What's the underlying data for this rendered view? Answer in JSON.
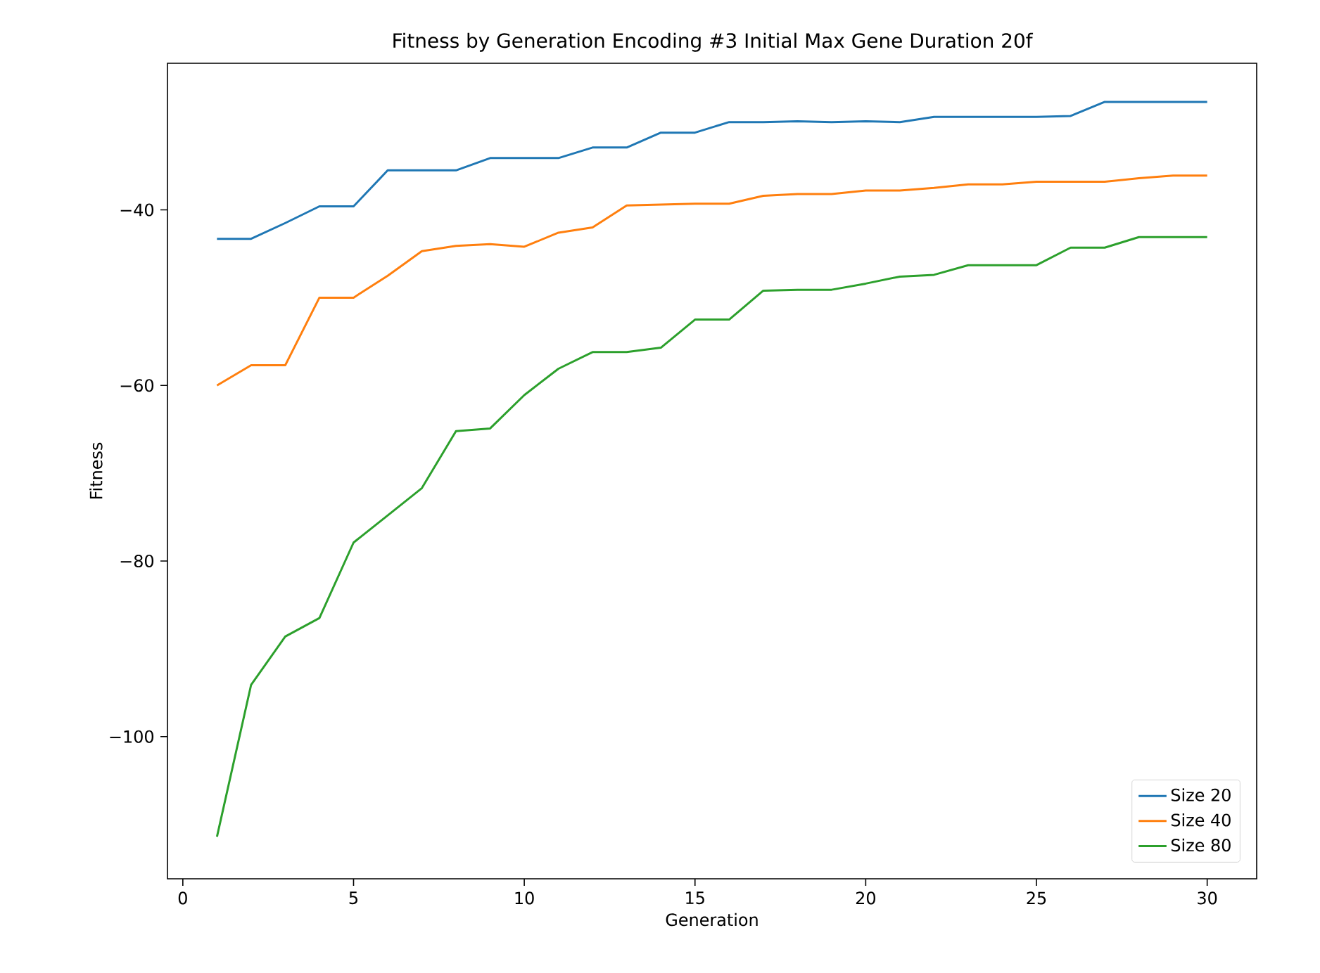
{
  "chart_data": {
    "type": "line",
    "title": "Fitness by Generation Encoding #3 Initial Max Gene Duration 20f",
    "xlabel": "Generation",
    "ylabel": "Fitness",
    "x": [
      1,
      2,
      3,
      4,
      5,
      6,
      7,
      8,
      9,
      10,
      11,
      12,
      13,
      14,
      15,
      16,
      17,
      18,
      19,
      20,
      21,
      22,
      23,
      24,
      25,
      26,
      27,
      28,
      29,
      30
    ],
    "series": [
      {
        "name": "Size 20",
        "color": "#1f77b4",
        "values": [
          -43.3,
          -43.3,
          -41.5,
          -39.6,
          -39.6,
          -35.5,
          -35.5,
          -35.5,
          -34.1,
          -34.1,
          -34.1,
          -32.9,
          -32.9,
          -31.2,
          -31.2,
          -30.0,
          -30.0,
          -29.9,
          -30.0,
          -29.9,
          -30.0,
          -29.4,
          -29.4,
          -29.4,
          -29.4,
          -29.3,
          -27.7,
          -27.7,
          -27.7,
          -27.7
        ]
      },
      {
        "name": "Size 40",
        "color": "#ff7f0e",
        "values": [
          -60.0,
          -57.7,
          -57.7,
          -50.0,
          -50.0,
          -47.5,
          -44.7,
          -44.1,
          -43.9,
          -44.2,
          -42.6,
          -42.0,
          -39.5,
          -39.4,
          -39.3,
          -39.3,
          -38.4,
          -38.2,
          -38.2,
          -37.8,
          -37.8,
          -37.5,
          -37.1,
          -37.1,
          -36.8,
          -36.8,
          -36.8,
          -36.4,
          -36.1,
          -36.1
        ]
      },
      {
        "name": "Size 80",
        "color": "#2ca02c",
        "values": [
          -111.4,
          -94.1,
          -88.6,
          -86.5,
          -77.9,
          -74.8,
          -71.7,
          -65.2,
          -64.9,
          -61.1,
          -58.1,
          -56.2,
          -56.2,
          -55.7,
          -52.5,
          -52.5,
          -49.2,
          -49.1,
          -49.1,
          -48.4,
          -47.6,
          -47.4,
          -46.3,
          -46.3,
          -46.3,
          -44.3,
          -44.3,
          -43.1,
          -43.1,
          -43.1
        ]
      }
    ],
    "xlim": [
      -0.45,
      31.45
    ],
    "ylim": [
      -116.2,
      -23.3
    ],
    "xticks": [
      0,
      5,
      10,
      15,
      20,
      25,
      30
    ],
    "yticks": [
      {
        "value": -100,
        "label": "−100"
      },
      {
        "value": -80,
        "label": "−80"
      },
      {
        "value": -60,
        "label": "−60"
      },
      {
        "value": -40,
        "label": "−40"
      }
    ],
    "legend": "bottom right",
    "grid": false,
    "marker": "none",
    "line_style": "solid"
  }
}
